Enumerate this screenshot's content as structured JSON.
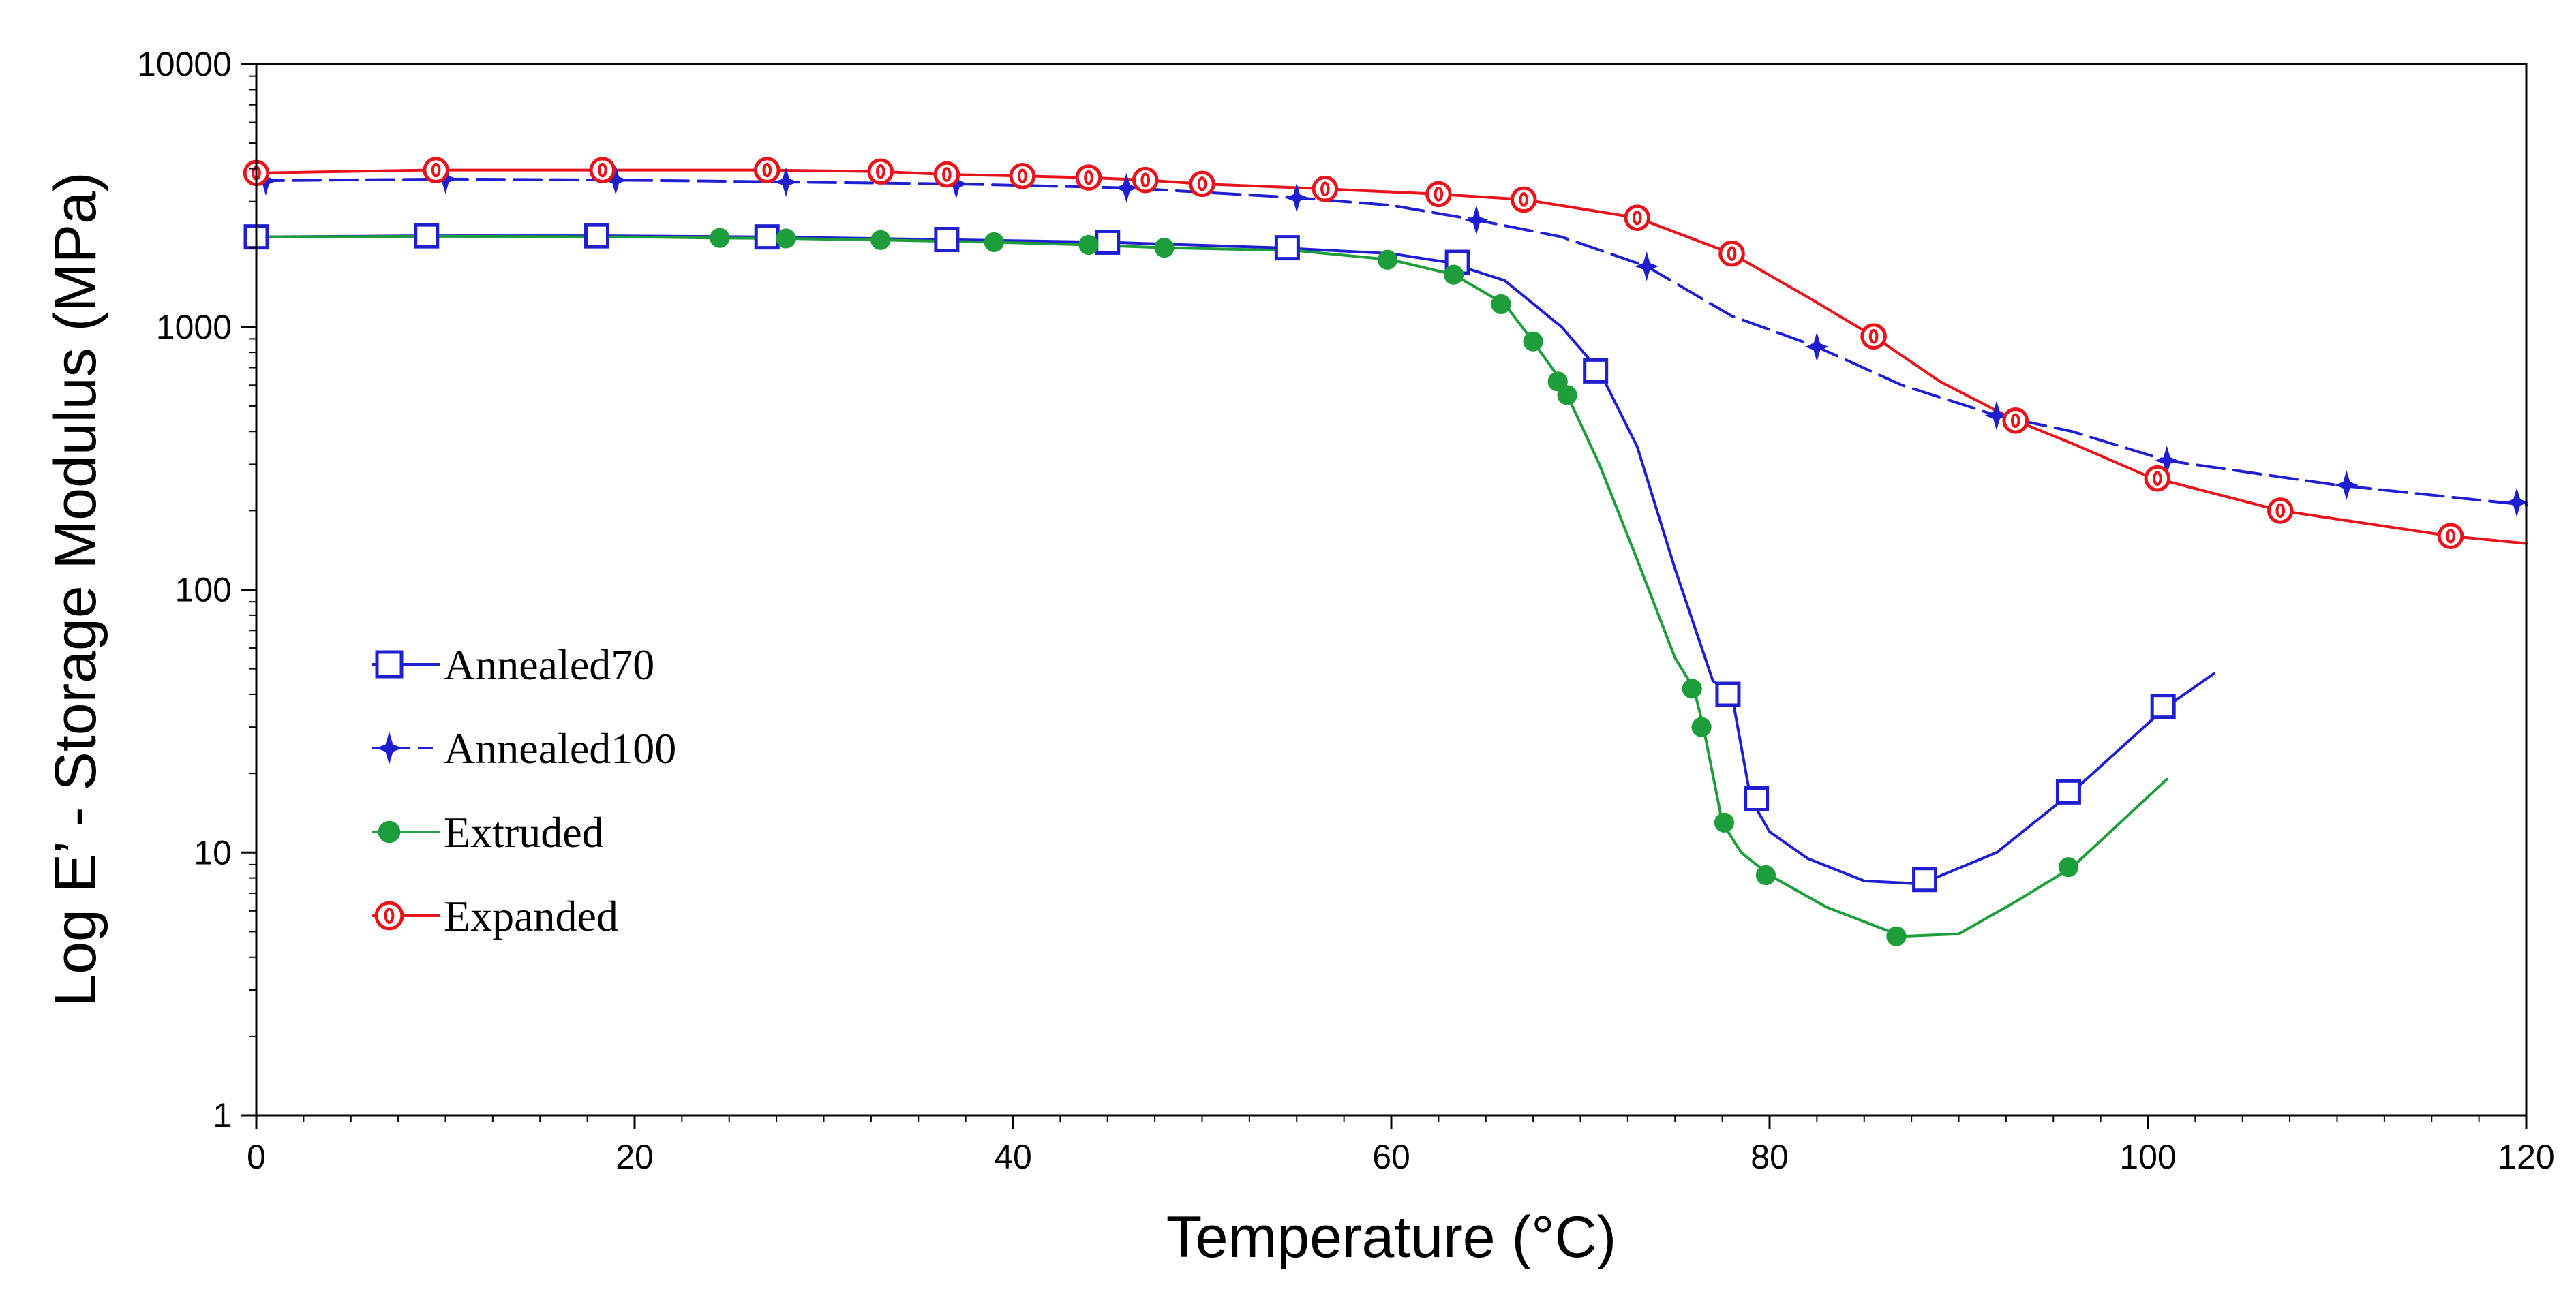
{
  "chart_data": {
    "type": "line",
    "title": "",
    "xlabel": "Temperature (°C)",
    "ylabel": "Log E’ - Storage Modulus (MPa)",
    "xlim": [
      0,
      120
    ],
    "ylim": [
      1,
      10000
    ],
    "yscale": "log",
    "grid": false,
    "legend_position": "left-center",
    "x_ticks": [
      0,
      20,
      40,
      60,
      80,
      100,
      120
    ],
    "x_tick_labels": [
      "0",
      "20",
      "40",
      "60",
      "80",
      "100",
      "120"
    ],
    "y_ticks": [
      1,
      10,
      100,
      1000,
      10000
    ],
    "y_tick_labels": [
      "1",
      "10",
      "100",
      "1000",
      "10000"
    ],
    "series": [
      {
        "name": "Annealed70",
        "color": "#1f1fd1",
        "marker": "square",
        "dash": "solid",
        "line": [
          [
            0,
            2200
          ],
          [
            9,
            2220
          ],
          [
            18,
            2220
          ],
          [
            27,
            2200
          ],
          [
            36,
            2150
          ],
          [
            45,
            2100
          ],
          [
            54,
            2000
          ],
          [
            60,
            1900
          ],
          [
            63,
            1760
          ],
          [
            66,
            1500
          ],
          [
            69,
            1000
          ],
          [
            71,
            680
          ],
          [
            73,
            350
          ],
          [
            75,
            120
          ],
          [
            77,
            45
          ],
          [
            78,
            40
          ],
          [
            79,
            16
          ],
          [
            80,
            12
          ],
          [
            82,
            9.5
          ],
          [
            85,
            7.8
          ],
          [
            88,
            7.6
          ],
          [
            92,
            10
          ],
          [
            96,
            17
          ],
          [
            101,
            36
          ],
          [
            103.5,
            48
          ]
        ],
        "markers": [
          [
            0,
            2200
          ],
          [
            9,
            2220
          ],
          [
            18,
            2220
          ],
          [
            27,
            2200
          ],
          [
            36.5,
            2150
          ],
          [
            45,
            2100
          ],
          [
            54.5,
            2000
          ],
          [
            63.5,
            1760
          ],
          [
            70.8,
            680
          ],
          [
            77.8,
            40
          ],
          [
            79.3,
            16
          ],
          [
            88.2,
            7.9
          ],
          [
            95.8,
            17
          ],
          [
            100.8,
            36
          ]
        ]
      },
      {
        "name": "Annealed100",
        "color": "#1f1fd1",
        "marker": "star",
        "dash": "dashed",
        "line": [
          [
            0,
            3600
          ],
          [
            10,
            3650
          ],
          [
            19,
            3620
          ],
          [
            28,
            3560
          ],
          [
            37,
            3500
          ],
          [
            46,
            3380
          ],
          [
            55,
            3100
          ],
          [
            60,
            2900
          ],
          [
            64.5,
            2550
          ],
          [
            69,
            2200
          ],
          [
            73.5,
            1700
          ],
          [
            78,
            1100
          ],
          [
            82.5,
            840
          ],
          [
            87,
            600
          ],
          [
            92,
            460
          ],
          [
            96,
            400
          ],
          [
            101,
            310
          ],
          [
            110,
            250
          ],
          [
            120,
            210
          ]
        ],
        "markers": [
          [
            0.5,
            3600
          ],
          [
            10,
            3650
          ],
          [
            19,
            3620
          ],
          [
            28,
            3560
          ],
          [
            37,
            3500
          ],
          [
            46,
            3380
          ],
          [
            55,
            3100
          ],
          [
            64.5,
            2550
          ],
          [
            73.5,
            1700
          ],
          [
            82.5,
            840
          ],
          [
            92,
            460
          ],
          [
            101,
            310
          ],
          [
            110.5,
            250
          ],
          [
            119.5,
            215
          ]
        ]
      },
      {
        "name": "Extruded",
        "color": "#1e9e3a",
        "marker": "circle",
        "dash": "solid",
        "line": [
          [
            0,
            2200
          ],
          [
            10,
            2210
          ],
          [
            20,
            2200
          ],
          [
            24,
            2180
          ],
          [
            28,
            2170
          ],
          [
            33,
            2140
          ],
          [
            39,
            2100
          ],
          [
            44,
            2050
          ],
          [
            48,
            2000
          ],
          [
            55,
            1950
          ],
          [
            60,
            1800
          ],
          [
            63.3,
            1580
          ],
          [
            66,
            1220
          ],
          [
            67.5,
            880
          ],
          [
            69,
            620
          ],
          [
            69.3,
            550
          ],
          [
            71,
            300
          ],
          [
            73,
            130
          ],
          [
            75,
            55
          ],
          [
            76,
            42
          ],
          [
            76.5,
            30
          ],
          [
            77.5,
            13
          ],
          [
            78.5,
            10
          ],
          [
            80,
            8.2
          ],
          [
            83,
            6.2
          ],
          [
            87,
            4.8
          ],
          [
            90,
            4.9
          ],
          [
            93,
            6.5
          ],
          [
            96,
            8.8
          ],
          [
            101,
            19
          ]
        ],
        "markers": [
          [
            24.5,
            2180
          ],
          [
            28,
            2170
          ],
          [
            33,
            2140
          ],
          [
            39,
            2100
          ],
          [
            44,
            2050
          ],
          [
            48,
            2000
          ],
          [
            59.8,
            1800
          ],
          [
            63.3,
            1580
          ],
          [
            65.8,
            1220
          ],
          [
            67.5,
            880
          ],
          [
            68.8,
            620
          ],
          [
            69.3,
            550
          ],
          [
            75.9,
            42
          ],
          [
            76.4,
            30
          ],
          [
            77.6,
            13
          ],
          [
            79.8,
            8.2
          ],
          [
            86.7,
            4.8
          ],
          [
            95.8,
            8.8
          ]
        ]
      },
      {
        "name": "Expanded",
        "color": "#e8141c",
        "marker": "oval",
        "dash": "solid",
        "line": [
          [
            0,
            3850
          ],
          [
            9,
            3950
          ],
          [
            18,
            3950
          ],
          [
            27,
            3950
          ],
          [
            33,
            3900
          ],
          [
            36.5,
            3800
          ],
          [
            40.5,
            3750
          ],
          [
            44,
            3700
          ],
          [
            47,
            3620
          ],
          [
            50,
            3500
          ],
          [
            56.5,
            3350
          ],
          [
            62.5,
            3200
          ],
          [
            67,
            3050
          ],
          [
            73,
            2600
          ],
          [
            78,
            1900
          ],
          [
            82,
            1300
          ],
          [
            85.5,
            920
          ],
          [
            89,
            620
          ],
          [
            93,
            440
          ],
          [
            96,
            360
          ],
          [
            100,
            270
          ],
          [
            107,
            200
          ],
          [
            116,
            160
          ],
          [
            120,
            150
          ]
        ],
        "markers": [
          [
            0,
            3850
          ],
          [
            9.5,
            3950
          ],
          [
            18.3,
            3950
          ],
          [
            27,
            3950
          ],
          [
            33,
            3900
          ],
          [
            36.5,
            3800
          ],
          [
            40.5,
            3750
          ],
          [
            44,
            3700
          ],
          [
            47,
            3620
          ],
          [
            50,
            3500
          ],
          [
            56.5,
            3350
          ],
          [
            62.5,
            3200
          ],
          [
            67,
            3050
          ],
          [
            73,
            2600
          ],
          [
            78,
            1900
          ],
          [
            85.5,
            920
          ],
          [
            93,
            440
          ],
          [
            100.5,
            265
          ],
          [
            107,
            200
          ],
          [
            116,
            160
          ]
        ]
      }
    ]
  }
}
